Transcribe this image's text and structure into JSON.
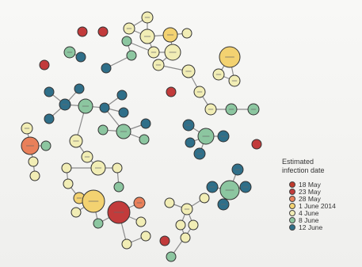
{
  "legend": {
    "title": "Estimated\ninfection date",
    "items": [
      {
        "label": "18 May",
        "color": "#c0392b"
      },
      {
        "label": "23 May",
        "color": "#c23b3b"
      },
      {
        "label": "28 May",
        "color": "#e9805a"
      },
      {
        "label": "1 June 2014",
        "color": "#f3d271"
      },
      {
        "label": "4 June",
        "color": "#f1edb5"
      },
      {
        "label": "8 June",
        "color": "#8cc6a0"
      },
      {
        "label": "12 June",
        "color": "#2f6f89"
      }
    ]
  }
}
